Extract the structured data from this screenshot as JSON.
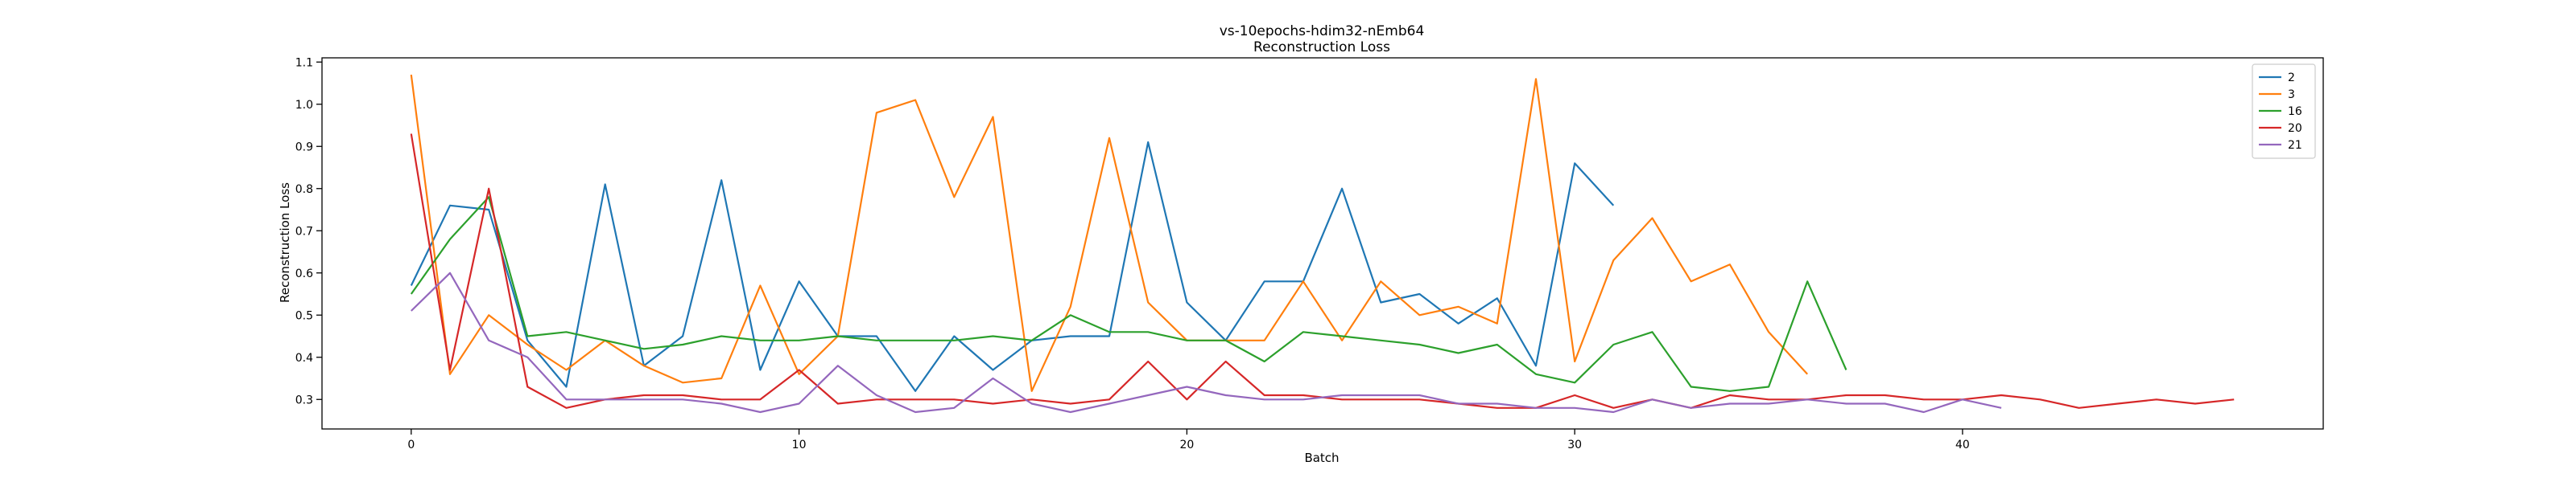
{
  "chart_data": {
    "type": "line",
    "title": "vs-10epochs-hdim32-nEmb64",
    "subtitle": "Reconstruction Loss",
    "xlabel": "Batch",
    "ylabel": "Reconstruction Loss",
    "xlim": [
      -2.3,
      49.3
    ],
    "ylim": [
      0.23,
      1.11
    ],
    "xticks": [
      0,
      10,
      20,
      30,
      40
    ],
    "yticks": [
      0.3,
      0.4,
      0.5,
      0.6,
      0.7,
      0.8,
      0.9,
      1.0,
      1.1
    ],
    "grid": false,
    "legend_position": "top-right",
    "series": [
      {
        "name": "2",
        "color": "#1f77b4",
        "x": [
          0,
          1,
          2,
          3,
          4,
          5,
          6,
          7,
          8,
          9,
          10,
          11,
          12,
          13,
          14,
          15,
          16,
          17,
          18,
          19,
          20,
          21,
          22,
          23,
          24,
          25,
          26,
          27,
          28,
          29,
          30,
          31
        ],
        "values": [
          0.57,
          0.76,
          0.75,
          0.44,
          0.33,
          0.81,
          0.38,
          0.45,
          0.82,
          0.37,
          0.58,
          0.45,
          0.45,
          0.32,
          0.45,
          0.37,
          0.44,
          0.45,
          0.45,
          0.91,
          0.53,
          0.44,
          0.58,
          0.58,
          0.8,
          0.53,
          0.55,
          0.48,
          0.54,
          0.38,
          0.86,
          0.76
        ]
      },
      {
        "name": "3",
        "color": "#ff7f0e",
        "x": [
          0,
          1,
          2,
          3,
          4,
          5,
          6,
          7,
          8,
          9,
          10,
          11,
          12,
          13,
          14,
          15,
          16,
          17,
          18,
          19,
          20,
          21,
          22,
          23,
          24,
          25,
          26,
          27,
          28,
          29,
          30,
          31,
          32,
          33,
          34,
          35,
          36
        ],
        "values": [
          1.07,
          0.36,
          0.5,
          0.43,
          0.37,
          0.44,
          0.38,
          0.34,
          0.35,
          0.57,
          0.36,
          0.45,
          0.98,
          1.01,
          0.78,
          0.97,
          0.32,
          0.52,
          0.92,
          0.53,
          0.44,
          0.44,
          0.44,
          0.58,
          0.44,
          0.58,
          0.5,
          0.52,
          0.48,
          1.06,
          0.39,
          0.63,
          0.73,
          0.58,
          0.62,
          0.46,
          0.36
        ]
      },
      {
        "name": "16",
        "color": "#2ca02c",
        "x": [
          0,
          1,
          2,
          3,
          4,
          5,
          6,
          7,
          8,
          9,
          10,
          11,
          12,
          13,
          14,
          15,
          16,
          17,
          18,
          19,
          20,
          21,
          22,
          23,
          24,
          25,
          26,
          27,
          28,
          29,
          30,
          31,
          32,
          33,
          34,
          35,
          36,
          37
        ],
        "values": [
          0.55,
          0.68,
          0.78,
          0.45,
          0.46,
          0.44,
          0.42,
          0.43,
          0.45,
          0.44,
          0.44,
          0.45,
          0.44,
          0.44,
          0.44,
          0.45,
          0.44,
          0.5,
          0.46,
          0.46,
          0.44,
          0.44,
          0.39,
          0.46,
          0.45,
          0.44,
          0.43,
          0.41,
          0.43,
          0.36,
          0.34,
          0.43,
          0.46,
          0.33,
          0.32,
          0.33,
          0.58,
          0.37
        ]
      },
      {
        "name": "20",
        "color": "#d62728",
        "x": [
          0,
          1,
          2,
          3,
          4,
          5,
          6,
          7,
          8,
          9,
          10,
          11,
          12,
          13,
          14,
          15,
          16,
          17,
          18,
          19,
          20,
          21,
          22,
          23,
          24,
          25,
          26,
          27,
          28,
          29,
          30,
          31,
          32,
          33,
          34,
          35,
          36,
          37,
          38,
          39,
          40,
          41,
          42,
          43,
          44,
          45,
          46,
          47
        ],
        "values": [
          0.93,
          0.37,
          0.8,
          0.33,
          0.28,
          0.3,
          0.31,
          0.31,
          0.3,
          0.3,
          0.37,
          0.29,
          0.3,
          0.3,
          0.3,
          0.29,
          0.3,
          0.29,
          0.3,
          0.39,
          0.3,
          0.39,
          0.31,
          0.31,
          0.3,
          0.3,
          0.3,
          0.29,
          0.28,
          0.28,
          0.31,
          0.28,
          0.3,
          0.28,
          0.31,
          0.3,
          0.3,
          0.31,
          0.31,
          0.3,
          0.3,
          0.31,
          0.3,
          0.28,
          0.29,
          0.3,
          0.29,
          0.3
        ]
      },
      {
        "name": "21",
        "color": "#9467bd",
        "x": [
          0,
          1,
          2,
          3,
          4,
          5,
          6,
          7,
          8,
          9,
          10,
          11,
          12,
          13,
          14,
          15,
          16,
          17,
          18,
          19,
          20,
          21,
          22,
          23,
          24,
          25,
          26,
          27,
          28,
          29,
          30,
          31,
          32,
          33,
          34,
          35,
          36,
          37,
          38,
          39,
          40,
          41
        ],
        "values": [
          0.51,
          0.6,
          0.44,
          0.4,
          0.3,
          0.3,
          0.3,
          0.3,
          0.29,
          0.27,
          0.29,
          0.38,
          0.31,
          0.27,
          0.28,
          0.35,
          0.29,
          0.27,
          0.29,
          0.31,
          0.33,
          0.31,
          0.3,
          0.3,
          0.31,
          0.31,
          0.31,
          0.29,
          0.29,
          0.28,
          0.28,
          0.27,
          0.3,
          0.28,
          0.29,
          0.29,
          0.3,
          0.29,
          0.29,
          0.27,
          0.3,
          0.28
        ]
      }
    ]
  }
}
